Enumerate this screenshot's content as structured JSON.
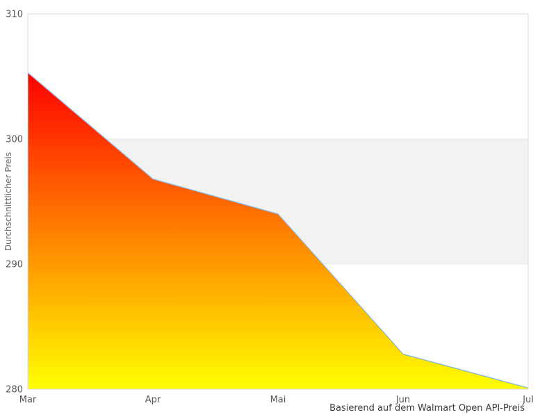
{
  "chart_data": {
    "type": "area",
    "title": "",
    "categories": [
      "Mar",
      "Apr",
      "Mai",
      "Jun",
      "Jul"
    ],
    "values": [
      305.3,
      296.8,
      294.0,
      282.8,
      280.1
    ],
    "xlabel": "",
    "ylabel": "Durchschnittlicher Preis",
    "ylim": [
      280,
      310
    ],
    "yticks": [
      310,
      300,
      290,
      280
    ],
    "legend": "none",
    "grid": "plot-band edges only, horizontal",
    "plot_band": {
      "from": 290,
      "to": 300,
      "color": "#f2f2f2"
    },
    "caption": "Basierend auf dem Walmart Open API-Preis",
    "colors": {
      "line": "#7cb5ec",
      "area_gradient_top": "#ff0000",
      "area_gradient_bottom": "#ffff00"
    }
  },
  "styles": {
    "background": "#ffffff",
    "plot_border_color": "#d9d9d9",
    "band_edge_color": "#e7e7e7",
    "tick_label_color": "#555555",
    "axis_title_color": "#666666",
    "caption_color": "#3c3c3c"
  }
}
